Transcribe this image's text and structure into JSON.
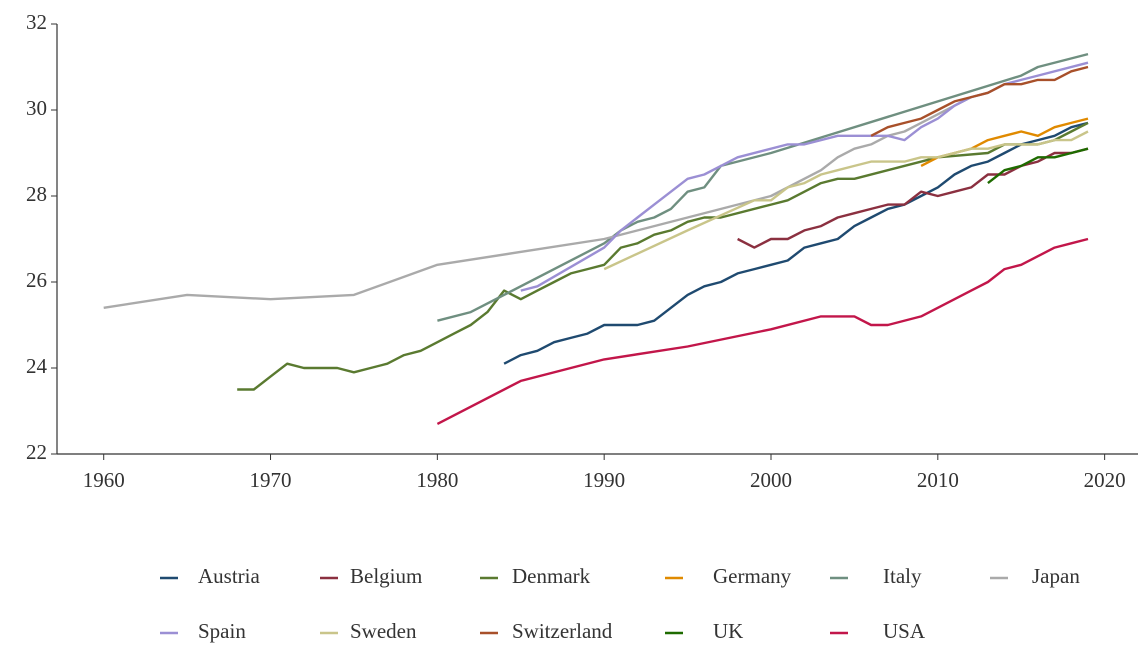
{
  "chart_data": {
    "type": "line",
    "xlim": [
      1957.2,
      2022
    ],
    "ylim": [
      22,
      32
    ],
    "xticks": [
      1960,
      1970,
      1980,
      1990,
      2000,
      2010,
      2020
    ],
    "yticks": [
      22,
      24,
      26,
      28,
      30,
      32
    ],
    "grid": false,
    "legend": "bottom",
    "series": [
      {
        "name": "Austria",
        "color": "#1f4a70",
        "x": [
          1984,
          1985,
          1986,
          1987,
          1988,
          1989,
          1990,
          1992,
          1993,
          1994,
          1995,
          1996,
          1997,
          1998,
          1999,
          2000,
          2001,
          2002,
          2003,
          2004,
          2005,
          2006,
          2007,
          2008,
          2009,
          2010,
          2011,
          2012,
          2013,
          2014,
          2015,
          2016,
          2017,
          2018,
          2019
        ],
        "values": [
          24.1,
          24.3,
          24.4,
          24.6,
          24.7,
          24.8,
          25.0,
          25.0,
          25.1,
          25.4,
          25.7,
          25.9,
          26.0,
          26.2,
          26.3,
          26.4,
          26.5,
          26.8,
          26.9,
          27.0,
          27.3,
          27.5,
          27.7,
          27.8,
          28.0,
          28.2,
          28.5,
          28.7,
          28.8,
          29.0,
          29.2,
          29.3,
          29.4,
          29.6,
          29.7
        ]
      },
      {
        "name": "Belgium",
        "color": "#8b3040",
        "x": [
          1998,
          1999,
          2000,
          2001,
          2002,
          2003,
          2004,
          2005,
          2006,
          2007,
          2008,
          2009,
          2010,
          2011,
          2012,
          2013,
          2014,
          2015,
          2016,
          2017,
          2018,
          2019
        ],
        "values": [
          27.0,
          26.8,
          27.0,
          27.0,
          27.2,
          27.3,
          27.5,
          27.6,
          27.7,
          27.8,
          27.8,
          28.1,
          28.0,
          28.1,
          28.2,
          28.5,
          28.5,
          28.7,
          28.8,
          29.0,
          29.0,
          29.1
        ]
      },
      {
        "name": "Denmark",
        "color": "#5a7a30",
        "x": [
          1968,
          1969,
          1970,
          1971,
          1972,
          1973,
          1974,
          1975,
          1976,
          1977,
          1978,
          1979,
          1980,
          1981,
          1982,
          1983,
          1984,
          1985,
          1986,
          1987,
          1988,
          1989,
          1990,
          1991,
          1992,
          1993,
          1994,
          1995,
          1996,
          1997,
          2000,
          2001,
          2002,
          2003,
          2004,
          2005,
          2010,
          2013,
          2014,
          2016,
          2017,
          2018,
          2019
        ],
        "values": [
          23.5,
          23.5,
          23.8,
          24.1,
          24.0,
          24.0,
          24.0,
          23.9,
          24.0,
          24.1,
          24.3,
          24.4,
          24.6,
          24.8,
          25.0,
          25.3,
          25.8,
          25.6,
          25.8,
          26.0,
          26.2,
          26.3,
          26.4,
          26.8,
          26.9,
          27.1,
          27.2,
          27.4,
          27.5,
          27.5,
          27.8,
          27.9,
          28.1,
          28.3,
          28.4,
          28.4,
          28.9,
          29.0,
          29.2,
          29.2,
          29.3,
          29.5,
          29.7
        ]
      },
      {
        "name": "Germany",
        "color": "#e08a00",
        "x": [
          2009,
          2010,
          2011,
          2012,
          2013,
          2014,
          2015,
          2016,
          2017,
          2018,
          2019
        ],
        "values": [
          28.7,
          28.9,
          29.0,
          29.1,
          29.3,
          29.4,
          29.5,
          29.4,
          29.6,
          29.7,
          29.8
        ]
      },
      {
        "name": "Italy",
        "color": "#6f8f80",
        "x": [
          1980,
          1982,
          1990,
          1991,
          1992,
          1993,
          1994,
          1995,
          1996,
          1997,
          2000,
          2015,
          2016,
          2019
        ],
        "values": [
          25.1,
          25.3,
          26.9,
          27.2,
          27.4,
          27.5,
          27.7,
          28.1,
          28.2,
          28.7,
          29.0,
          30.8,
          31.0,
          31.3
        ]
      },
      {
        "name": "Japan",
        "color": "#aaaaaa",
        "x": [
          1960,
          1965,
          1970,
          1975,
          1980,
          1990,
          1995,
          2000,
          2003,
          2004,
          2005,
          2006,
          2007,
          2008,
          2009,
          2010,
          2011,
          2012
        ],
        "values": [
          25.4,
          25.7,
          25.6,
          25.7,
          26.4,
          27.0,
          27.5,
          28.0,
          28.6,
          28.9,
          29.1,
          29.2,
          29.4,
          29.5,
          29.7,
          29.9,
          30.1,
          30.3
        ]
      },
      {
        "name": "Spain",
        "color": "#9b8fd4",
        "x": [
          1985,
          1986,
          1990,
          1991,
          1992,
          1993,
          1994,
          1995,
          1996,
          1997,
          1998,
          2001,
          2002,
          2004,
          2007,
          2008,
          2009,
          2010,
          2011,
          2012,
          2013,
          2014,
          2015,
          2016,
          2019
        ],
        "values": [
          25.8,
          25.9,
          26.8,
          27.2,
          27.5,
          27.8,
          28.1,
          28.4,
          28.5,
          28.7,
          28.9,
          29.2,
          29.2,
          29.4,
          29.4,
          29.3,
          29.6,
          29.8,
          30.1,
          30.3,
          30.4,
          30.6,
          30.7,
          30.8,
          31.1
        ]
      },
      {
        "name": "Sweden",
        "color": "#c9c58a",
        "x": [
          1990,
          1995,
          1999,
          2000,
          2001,
          2002,
          2003,
          2004,
          2005,
          2006,
          2008,
          2009,
          2010,
          2011,
          2012,
          2013,
          2014,
          2015,
          2016,
          2017,
          2018,
          2019
        ],
        "values": [
          26.3,
          27.2,
          27.9,
          27.9,
          28.2,
          28.3,
          28.5,
          28.6,
          28.7,
          28.8,
          28.8,
          28.9,
          28.9,
          29.0,
          29.1,
          29.1,
          29.2,
          29.2,
          29.2,
          29.3,
          29.3,
          29.5
        ]
      },
      {
        "name": "Switzerland",
        "color": "#a8502a",
        "x": [
          2006,
          2007,
          2008,
          2009,
          2010,
          2011,
          2012,
          2013,
          2014,
          2015,
          2016,
          2017,
          2018,
          2019
        ],
        "values": [
          29.4,
          29.6,
          29.7,
          29.8,
          30.0,
          30.2,
          30.3,
          30.4,
          30.6,
          30.6,
          30.7,
          30.7,
          30.9,
          31.0
        ]
      },
      {
        "name": "UK",
        "color": "#1e6b00",
        "x": [
          2013,
          2014,
          2015,
          2016,
          2017,
          2018,
          2019
        ],
        "values": [
          28.3,
          28.6,
          28.7,
          28.9,
          28.9,
          29.0,
          29.1
        ]
      },
      {
        "name": "USA",
        "color": "#c2164a",
        "x": [
          1980,
          1985,
          1990,
          1995,
          2000,
          2003,
          2005,
          2006,
          2007,
          2009,
          2010,
          2011,
          2012,
          2013,
          2014,
          2015,
          2016,
          2017,
          2018,
          2019
        ],
        "values": [
          22.7,
          23.7,
          24.2,
          24.5,
          24.9,
          25.2,
          25.2,
          25.0,
          25.0,
          25.2,
          25.4,
          25.6,
          25.8,
          26.0,
          26.3,
          26.4,
          26.6,
          26.8,
          26.9,
          27.0
        ]
      }
    ]
  }
}
